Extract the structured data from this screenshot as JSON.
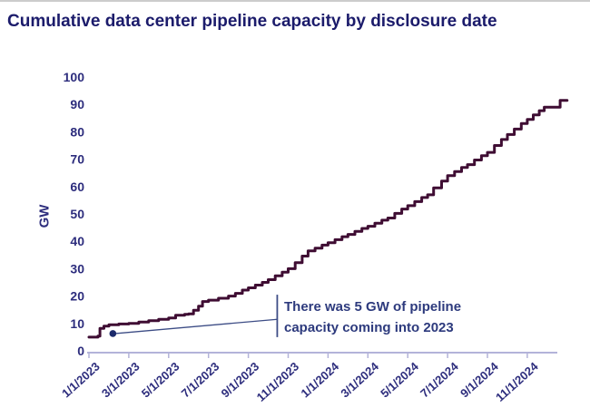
{
  "page": {
    "title": "Cumulative data center pipeline capacity by disclosure date"
  },
  "chart_data": {
    "type": "line",
    "title": "Cumulative data center pipeline capacity by disclosure date",
    "xlabel": "",
    "ylabel": "GW",
    "ylim": [
      0,
      100
    ],
    "yticks": [
      0,
      10,
      20,
      30,
      40,
      50,
      60,
      70,
      80,
      90,
      100
    ],
    "xtick_labels": [
      "1/1/2023",
      "3/1/2023",
      "5/1/2023",
      "7/1/2023",
      "9/1/2023",
      "11/1/2023",
      "1/1/2024",
      "3/1/2024",
      "5/1/2024",
      "7/1/2024",
      "9/1/2024",
      "11/1/2024"
    ],
    "xtick_months": [
      0,
      2,
      4,
      6,
      8,
      10,
      12,
      14,
      16,
      18,
      20,
      22
    ],
    "x_unit": "months since 1/1/2023",
    "step": true,
    "grid": false,
    "legend_position": "none",
    "series": [
      {
        "name": "Cumulative data center pipeline capacity (GW)",
        "points": [
          [
            0,
            5
          ],
          [
            0.45,
            5.4
          ],
          [
            0.55,
            8.2
          ],
          [
            0.75,
            9
          ],
          [
            1,
            9.5
          ],
          [
            1.5,
            9.8
          ],
          [
            2,
            10
          ],
          [
            2.5,
            10.5
          ],
          [
            3,
            11
          ],
          [
            3.5,
            11.5
          ],
          [
            4,
            12
          ],
          [
            4.35,
            13
          ],
          [
            4.8,
            13.3
          ],
          [
            5,
            13.5
          ],
          [
            5.25,
            14.8
          ],
          [
            5.5,
            16.3
          ],
          [
            5.7,
            18
          ],
          [
            6,
            18.5
          ],
          [
            6.5,
            19.2
          ],
          [
            7,
            20
          ],
          [
            7.35,
            21
          ],
          [
            7.7,
            22.2
          ],
          [
            8,
            23
          ],
          [
            8.35,
            24
          ],
          [
            8.7,
            25
          ],
          [
            9,
            26
          ],
          [
            9.35,
            27.4
          ],
          [
            9.7,
            28.7
          ],
          [
            10,
            30
          ],
          [
            10.35,
            32.2
          ],
          [
            10.7,
            34.6
          ],
          [
            11,
            36.5
          ],
          [
            11.35,
            37.5
          ],
          [
            11.7,
            38.6
          ],
          [
            12,
            39.5
          ],
          [
            12.35,
            40.6
          ],
          [
            12.7,
            41.7
          ],
          [
            13,
            42.5
          ],
          [
            13.35,
            43.6
          ],
          [
            13.7,
            44.7
          ],
          [
            14,
            45.5
          ],
          [
            14.35,
            46.6
          ],
          [
            14.7,
            47.7
          ],
          [
            15,
            48.5
          ],
          [
            15.35,
            50.2
          ],
          [
            15.7,
            51.8
          ],
          [
            16,
            53
          ],
          [
            16.35,
            54.5
          ],
          [
            16.7,
            56
          ],
          [
            17,
            57
          ],
          [
            17.3,
            59.5
          ],
          [
            17.7,
            62
          ],
          [
            18,
            64
          ],
          [
            18.35,
            65.5
          ],
          [
            18.7,
            67
          ],
          [
            19,
            68
          ],
          [
            19.35,
            69.7
          ],
          [
            19.7,
            71.3
          ],
          [
            20,
            72.5
          ],
          [
            20.35,
            75
          ],
          [
            20.7,
            77.2
          ],
          [
            21,
            79
          ],
          [
            21.35,
            81
          ],
          [
            21.7,
            83
          ],
          [
            22,
            84.5
          ],
          [
            22.3,
            86.2
          ],
          [
            22.6,
            87.7
          ],
          [
            22.85,
            89
          ],
          [
            23.55,
            89
          ],
          [
            23.65,
            91.5
          ],
          [
            24,
            91.5
          ]
        ]
      }
    ],
    "annotation": {
      "line1": "There was 5 GW of pipeline",
      "line2": "capacity coming into 2023",
      "marker_point": {
        "month": 1.2,
        "gw": 6.3
      },
      "bracket": {
        "month": 9.45,
        "gw_top": 20.5,
        "gw_bottom": 5.0,
        "connector_gw": 11.5
      }
    },
    "colors": {
      "title_text": "#1b1b6b",
      "axis_label_text": "#2d2d7d",
      "data_line": "#3f0d33",
      "axis_line": "#b3b3d9",
      "annotation_text": "#2d3a7d",
      "annotation_line": "#3c4c85",
      "marker_dot": "#1b2a6b",
      "top_border": "#cccccc",
      "background": "#ffffff"
    }
  }
}
